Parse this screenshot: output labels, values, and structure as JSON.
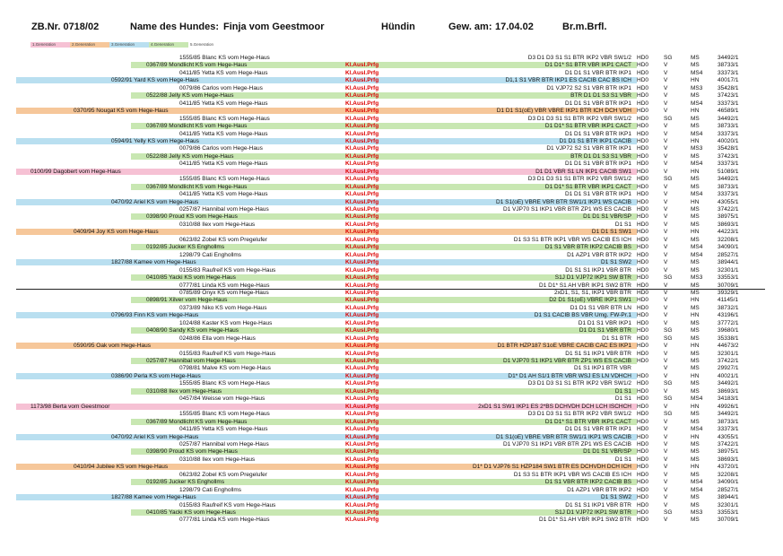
{
  "header": {
    "zb_nr": "ZB.Nr. 0718/02",
    "name_label": "Name des Hundes:",
    "dog_name": "Finja vom Geestmoor",
    "sex": "Hündin",
    "whelped_label": "Gew. am:",
    "whelped_date": "17.04.02",
    "color": "Br.m.Brfl."
  },
  "legend": [
    {
      "label": "1.Generation",
      "color": "#f6c1d4"
    },
    {
      "label": "2.Generation",
      "color": "#f6c79a"
    },
    {
      "label": "3.Generation",
      "color": "#b9dff0"
    },
    {
      "label": "4.Generation",
      "color": "#c8e7b2"
    },
    {
      "label": "5.Generation",
      "color": "#ffffff"
    }
  ],
  "gen_colors": [
    "#f6c1d4",
    "#f6c79a",
    "#b9dff0",
    "#c8e7b2",
    "#ffffff"
  ],
  "rows": [
    {
      "g": 5,
      "name": "1555/85 Blanc KS vom Hege-Haus",
      "kl": "",
      "tit": "D3 D1 D3 S1 S1 BTR IKP2 VBR SW1/2",
      "hd": "HD0",
      "sg": "SG",
      "ms": "MS",
      "num": "34492/1"
    },
    {
      "g": 4,
      "name": "0367/89 Mondlicht KS vom Hege-Haus",
      "kl": "Kl.Ausl.Prfg",
      "tit": "D1 D1* S1 BTR VBR IKP1 CACT",
      "hd": "HD0",
      "sg": "V",
      "ms": "MS",
      "num": "38733/1"
    },
    {
      "g": 5,
      "name": "0411/85 Yetta KS vom Hege-Haus",
      "kl": "Kl.Ausl.Prfg",
      "tit": "D1 D1 S1 VBR BTR IKP1",
      "hd": "HD0",
      "sg": "V",
      "ms": "MS4",
      "num": "33373/1"
    },
    {
      "g": 3,
      "name": "0592/91 Yard KS vom Hege-Haus",
      "kl": "Kl.Ausl.Prfg",
      "tit": "D1,1 S1 VBR BTR IKP1 ES CACIB CAC BS ICH",
      "hd": "HD0",
      "sg": "V",
      "ms": "HN",
      "num": "40017/1"
    },
    {
      "g": 5,
      "name": "0079/86 Carlos vom Hege-Haus",
      "kl": "Kl.Ausl.Prfg",
      "tit": "D1 VJP72 S2 S1 VBR BTR IKP1",
      "hd": "HD0",
      "sg": "V",
      "ms": "MS3",
      "num": "35428/1"
    },
    {
      "g": 4,
      "name": "0522/88 Jelly KS vom Hege-Haus",
      "kl": "Kl.Ausl.Prfg",
      "tit": "BTR D1 D1 S3 S1 VBR",
      "hd": "HD0",
      "sg": "V",
      "ms": "MS",
      "num": "37423/1"
    },
    {
      "g": 5,
      "name": "0411/85 Yetta KS vom Hege-Haus",
      "kl": "Kl.Ausl.Prfg",
      "tit": "D1 D1 S1 VBR BTR IKP1",
      "hd": "HD0",
      "sg": "V",
      "ms": "MS4",
      "num": "33373/1"
    },
    {
      "g": 2,
      "name": "0370/95 Nougat KS vom Hege-Haus",
      "kl": "Kl.Ausl.Prfg",
      "tit": "D1 D1 S1(oE) VBR VBRE IKP1 BTR ICH DCH VDH",
      "hd": "HD0",
      "sg": "V",
      "ms": "HN",
      "num": "46589/1"
    },
    {
      "g": 5,
      "name": "1555/85 Blanc KS vom Hege-Haus",
      "kl": "Kl.Ausl.Prfg",
      "tit": "D3 D1 D3 S1 S1 BTR IKP2 VBR SW1/2",
      "hd": "HD0",
      "sg": "SG",
      "ms": "MS",
      "num": "34492/1"
    },
    {
      "g": 4,
      "name": "0367/89 Mondlicht KS vom Hege-Haus",
      "kl": "Kl.Ausl.Prfg",
      "tit": "D1 D1* S1 BTR VBR IKP1 CACT",
      "hd": "HD0",
      "sg": "V",
      "ms": "MS",
      "num": "38733/1"
    },
    {
      "g": 5,
      "name": "0411/85 Yetta KS vom Hege-Haus",
      "kl": "Kl.Ausl.Prfg",
      "tit": "D1 D1 S1 VBR BTR IKP1",
      "hd": "HD0",
      "sg": "V",
      "ms": "MS4",
      "num": "33373/1"
    },
    {
      "g": 3,
      "name": "0594/91 Yelly KS vom Hege-Haus",
      "kl": "Kl.Ausl.Prfg",
      "tit": "D1 D1 S1 BTR IKP1 CACIB",
      "hd": "HD0",
      "sg": "V",
      "ms": "HN",
      "num": "40020/1"
    },
    {
      "g": 5,
      "name": "0079/86 Carlos vom Hege-Haus",
      "kl": "Kl.Ausl.Prfg",
      "tit": "D1 VJP72 S2 S1 VBR BTR IKP1",
      "hd": "HD0",
      "sg": "V",
      "ms": "MS3",
      "num": "35428/1"
    },
    {
      "g": 4,
      "name": "0522/88 Jelly KS vom Hege-Haus",
      "kl": "Kl.Ausl.Prfg",
      "tit": "BTR D1 D1 S3 S1 VBR",
      "hd": "HD0",
      "sg": "V",
      "ms": "MS",
      "num": "37423/1"
    },
    {
      "g": 5,
      "name": "0411/85 Yetta KS vom Hege-Haus",
      "kl": "Kl.Ausl.Prfg",
      "tit": "D1 D1 S1 VBR BTR IKP1",
      "hd": "HD0",
      "sg": "V",
      "ms": "MS4",
      "num": "33373/1"
    },
    {
      "g": 1,
      "name": "0100/99 Dagobert vom Hege-Haus",
      "kl": "Kl.Ausl.Prfg",
      "tit": "D1 D1 VBR S1 LN IKP1 CACIB SW1",
      "hd": "HD0",
      "sg": "V",
      "ms": "HN",
      "num": "51089/1"
    },
    {
      "g": 5,
      "name": "1555/85 Blanc KS vom Hege-Haus",
      "kl": "Kl.Ausl.Prfg",
      "tit": "D3 D1 D3 S1 S1 BTR IKP2 VBR SW1/2",
      "hd": "HD0",
      "sg": "SG",
      "ms": "MS",
      "num": "34492/1"
    },
    {
      "g": 4,
      "name": "0367/89 Mondlicht KS vom Hege-Haus",
      "kl": "Kl.Ausl.Prfg",
      "tit": "D1 D1* S1 BTR VBR IKP1 CACT",
      "hd": "HD0",
      "sg": "V",
      "ms": "MS",
      "num": "38733/1"
    },
    {
      "g": 5,
      "name": "0411/85 Yetta KS vom Hege-Haus",
      "kl": "Kl.Ausl.Prfg",
      "tit": "D1 D1 S1 VBR BTR IKP1",
      "hd": "HD0",
      "sg": "V",
      "ms": "MS4",
      "num": "33373/1"
    },
    {
      "g": 3,
      "name": "0470/92 Ariel KS vom Hege-Haus",
      "kl": "Kl.Ausl.Prfg",
      "tit": "D1 S1(oE) VBRE VBR BTR SW1/1 IKP1 WS CACIB",
      "hd": "HD0",
      "sg": "V",
      "ms": "HN",
      "num": "43055/1"
    },
    {
      "g": 5,
      "name": "0257/87 Hannibal vom Hege-Haus",
      "kl": "Kl.Ausl.Prfg",
      "tit": "D1 VJP70 S1 IKP1 VBR BTR ZP1 WS ES CACIB",
      "hd": "HD0",
      "sg": "V",
      "ms": "MS",
      "num": "37422/1"
    },
    {
      "g": 4,
      "name": "0398/90 Proud KS vom Hege-Haus",
      "kl": "Kl.Ausl.Prfg",
      "tit": "D1 D1 S1 VBR/SP",
      "hd": "HD0",
      "sg": "V",
      "ms": "MS",
      "num": "38975/1"
    },
    {
      "g": 5,
      "name": "0310/88 Ilex vom Hege-Haus",
      "kl": "Kl.Ausl.Prfg",
      "tit": "D1 S1",
      "hd": "HD0",
      "sg": "V",
      "ms": "MS",
      "num": "38693/1"
    },
    {
      "g": 2,
      "name": "0409/94 Joy KS vom Hege-Haus",
      "kl": "Kl.Ausl.Prfg",
      "tit": "D1 D1 S1 SW1",
      "hd": "HD0",
      "sg": "V",
      "ms": "HN",
      "num": "44223/1"
    },
    {
      "g": 5,
      "name": "0623/82 Zobel KS vom Pregelufer",
      "kl": "Kl.Ausl.Prfg",
      "tit": "D1 S3 S1 BTR IKP1 VBR WS CACIB ES ICH",
      "hd": "HD0",
      "sg": "V",
      "ms": "MS",
      "num": "32208/1"
    },
    {
      "g": 4,
      "name": "0192/85 Jucker KS  Enghollms",
      "kl": "Kl.Ausl.Prfg",
      "tit": "D1 S1 VBR BTR IKP2 CACIB BS",
      "hd": "HD0",
      "sg": "V",
      "ms": "MS4",
      "num": "34090/1"
    },
    {
      "g": 5,
      "name": "1298/79 Cati  Enghollms",
      "kl": "Kl.Ausl.Prfg",
      "tit": "D1 AZP1 VBR BTR IKP2",
      "hd": "HD0",
      "sg": "V",
      "ms": "MS4",
      "num": "28527/1"
    },
    {
      "g": 3,
      "name": "1827/88 Kamee vom Hege-Haus",
      "kl": "Kl.Ausl.Prfg",
      "tit": "D1 S1 SW2",
      "hd": "HD0",
      "sg": "V",
      "ms": "MS",
      "num": "38944/1"
    },
    {
      "g": 5,
      "name": "0155/83 Raufreif KS vom Hege-Haus",
      "kl": "Kl.Ausl.Prfg",
      "tit": "D1 S1 S1 IKP1 VBR BTR",
      "hd": "HD0",
      "sg": "V",
      "ms": "MS",
      "num": "32301/1"
    },
    {
      "g": 4,
      "name": "0410/85 Yacki KS vom Hege-Haus",
      "kl": "Kl.Ausl.Prfg",
      "tit": "S1J D1 VJP72 IKP1 SW BTR",
      "hd": "HD0",
      "sg": "SG",
      "ms": "MS3",
      "num": "33553/1"
    },
    {
      "g": 5,
      "name": "0777/81 Linda KS vom Hege-Haus",
      "kl": "Kl.Ausl.Prfg",
      "tit": "D1 D1* S1 AH VBR IKP1 SW2 BTR",
      "hd": "HD0",
      "sg": "V",
      "ms": "MS",
      "num": "30709/1"
    },
    {
      "g": 5,
      "name": "0785/89 Onyx KS vom Hege-Haus",
      "kl": "Kl.Ausl.Prfg",
      "tit": "2xD1, S1, S1, IKP1 VBR BTR",
      "hd": "HD0",
      "sg": "V",
      "ms": "MS",
      "num": "39329/1"
    },
    {
      "g": 4,
      "name": "0898/91 Xilver vom Hege-Haus",
      "kl": "Kl.Ausl.Prfg",
      "tit": "D2 D1 S1(oE) VBRE IKP1 SW1",
      "hd": "HD0",
      "sg": "V",
      "ms": "HN",
      "num": "41145/1"
    },
    {
      "g": 5,
      "name": "0373/89 Niko KS vom Hege-Haus",
      "kl": "Kl.Ausl.Prfg",
      "tit": "D1 D1 S1 VBR BTR LN",
      "hd": "HD0",
      "sg": "V",
      "ms": "MS",
      "num": "38732/1"
    },
    {
      "g": 3,
      "name": "0796/93 Finn KS vom Hege-Haus",
      "kl": "Kl.Ausl.Prfg",
      "tit": "D1 S1 CACIB BS VBR Umg. FW-Pr.1",
      "hd": "HD0",
      "sg": "V",
      "ms": "HN",
      "num": "43196/1"
    },
    {
      "g": 5,
      "name": "1024/88 Kaster KS vom Hege-Haus",
      "kl": "Kl.Ausl.Prfg",
      "tit": "D1 D1 S1 VBR IKP1",
      "hd": "HD0",
      "sg": "V",
      "ms": "MS",
      "num": "37772/1"
    },
    {
      "g": 4,
      "name": "0408/90 Sandy KS vom Hege-Haus",
      "kl": "Kl.Ausl.Prfg",
      "tit": "D1 D1 S1 VBR BTR",
      "hd": "HD0",
      "sg": "SG",
      "ms": "MS",
      "num": "39680/1"
    },
    {
      "g": 5,
      "name": "0248/86 Ella vom Hege-Haus",
      "kl": "Kl.Ausl.Prfg",
      "tit": "D1 S1 BTR",
      "hd": "HD0",
      "sg": "SG",
      "ms": "MS",
      "num": "35338/1"
    },
    {
      "g": 2,
      "name": "0590/95 Oak vom Hege-Haus",
      "kl": "Kl.Ausl.Prfg",
      "tit": "D1 BTR HZP187 S1oE VBRE CACIB CAC ES IKP1",
      "hd": "HD0",
      "sg": "V",
      "ms": "HN",
      "num": "44673/2"
    },
    {
      "g": 5,
      "name": "0155/83 Raufreif KS vom Hege-Haus",
      "kl": "Kl.Ausl.Prfg",
      "tit": "D1 S1 S1 IKP1 VBR BTR",
      "hd": "HD0",
      "sg": "V",
      "ms": "MS",
      "num": "32301/1"
    },
    {
      "g": 4,
      "name": "0257/87 Hannibal vom Hege-Haus",
      "kl": "Kl.Ausl.Prfg",
      "tit": "D1 VJP70 S1 IKP1 VBR BTR ZP1 WS ES CACIB",
      "hd": "HD0",
      "sg": "V",
      "ms": "MS",
      "num": "37422/1"
    },
    {
      "g": 5,
      "name": "0798/81 Malve KS vom Hege-Haus",
      "kl": "Kl.Ausl.Prfg",
      "tit": "D1 S1 IKP1 BTR VBR",
      "hd": "",
      "sg": "V",
      "ms": "MS",
      "num": "29927/1"
    },
    {
      "g": 3,
      "name": "0386/90 Perla KS vom Hege-Haus",
      "kl": "Kl.Ausl.Prfg",
      "tit": "D1* D1 AH S1/1 BTR VBR WSJ ES LN VDHCH",
      "hd": "HD0",
      "sg": "V",
      "ms": "HN",
      "num": "40021/1"
    },
    {
      "g": 5,
      "name": "1555/85 Blanc KS vom Hege-Haus",
      "kl": "Kl.Ausl.Prfg",
      "tit": "D3 D1 D3 S1 S1 BTR IKP2 VBR SW1/2",
      "hd": "HD0",
      "sg": "SG",
      "ms": "MS",
      "num": "34492/1"
    },
    {
      "g": 4,
      "name": "0310/88 Ilex vom Hege-Haus",
      "kl": "Kl.Ausl.Prfg",
      "tit": "D1 S1",
      "hd": "HD0",
      "sg": "V",
      "ms": "MS",
      "num": "38693/1"
    },
    {
      "g": 5,
      "name": "0457/84 Weisse vom Hege-Haus",
      "kl": "Kl.Ausl.Prfg",
      "tit": "D1 S1",
      "hd": "HD0",
      "sg": "SG",
      "ms": "MS4",
      "num": "34183/1"
    },
    {
      "g": 1,
      "name": "1173/98 Berta vom Geestmoor",
      "kl": "Kl.Ausl.Prfg",
      "tit": "2xD1 S1 SW1 IKP1 ES 2*BS DCHVDH DCH LCH ISCHCH",
      "hd": "HD0",
      "sg": "V",
      "ms": "HN",
      "num": "49926/1"
    },
    {
      "g": 5,
      "name": "1555/85 Blanc KS vom Hege-Haus",
      "kl": "Kl.Ausl.Prfg",
      "tit": "D3 D1 D3 S1 S1 BTR IKP2 VBR SW1/2",
      "hd": "HD0",
      "sg": "SG",
      "ms": "MS",
      "num": "34492/1"
    },
    {
      "g": 4,
      "name": "0367/89 Mondlicht KS vom Hege-Haus",
      "kl": "Kl.Ausl.Prfg",
      "tit": "D1 D1* S1 BTR VBR IKP1 CACT",
      "hd": "HD0",
      "sg": "V",
      "ms": "MS",
      "num": "38733/1"
    },
    {
      "g": 5,
      "name": "0411/85 Yetta KS vom Hege-Haus",
      "kl": "Kl.Ausl.Prfg",
      "tit": "D1 D1 S1 VBR BTR IKP1",
      "hd": "HD0",
      "sg": "V",
      "ms": "MS4",
      "num": "33373/1"
    },
    {
      "g": 3,
      "name": "0470/92 Ariel KS vom Hege-Haus",
      "kl": "Kl.Ausl.Prfg",
      "tit": "D1 S1(oE) VBRE VBR BTR SW1/1 IKP1 WS CACIB",
      "hd": "HD0",
      "sg": "V",
      "ms": "HN",
      "num": "43055/1"
    },
    {
      "g": 5,
      "name": "0257/87 Hannibal vom Hege-Haus",
      "kl": "Kl.Ausl.Prfg",
      "tit": "D1 VJP70 S1 IKP1 VBR BTR ZP1 WS ES CACIB",
      "hd": "HD0",
      "sg": "V",
      "ms": "MS",
      "num": "37422/1"
    },
    {
      "g": 4,
      "name": "0398/90 Proud KS vom Hege-Haus",
      "kl": "Kl.Ausl.Prfg",
      "tit": "D1 D1 S1 VBR/SP",
      "hd": "HD0",
      "sg": "V",
      "ms": "MS",
      "num": "38975/1"
    },
    {
      "g": 5,
      "name": "0310/88 Ilex vom Hege-Haus",
      "kl": "Kl.Ausl.Prfg",
      "tit": "D1 S1",
      "hd": "HD0",
      "sg": "V",
      "ms": "MS",
      "num": "38693/1"
    },
    {
      "g": 2,
      "name": "0410/94 Jubilee KS vom Hege-Haus",
      "kl": "Kl.Ausl.Prfg",
      "tit": "D1* D1 VJP76 S1 HZP184 SW1 BTR ES DCHVDH DCH ICH",
      "hd": "HD0",
      "sg": "V",
      "ms": "HN",
      "num": "43720/1"
    },
    {
      "g": 5,
      "name": "0623/82 Zobel KS vom Pregelufer",
      "kl": "Kl.Ausl.Prfg",
      "tit": "D1 S3 S1 BTR IKP1 VBR WS CACIB ES ICH",
      "hd": "HD0",
      "sg": "V",
      "ms": "MS",
      "num": "32208/1"
    },
    {
      "g": 4,
      "name": "0192/85 Jucker KS  Enghollms",
      "kl": "Kl.Ausl.Prfg",
      "tit": "D1 S1 VBR BTR IKP2 CACIB BS",
      "hd": "HD0",
      "sg": "V",
      "ms": "MS4",
      "num": "34090/1"
    },
    {
      "g": 5,
      "name": "1298/79 Cati  Enghollms",
      "kl": "Kl.Ausl.Prfg",
      "tit": "D1 AZP1 VBR BTR IKP2",
      "hd": "HD0",
      "sg": "V",
      "ms": "MS4",
      "num": "28527/1"
    },
    {
      "g": 3,
      "name": "1827/88 Kamee vom Hege-Haus",
      "kl": "Kl.Ausl.Prfg",
      "tit": "D1 S1 SW2",
      "hd": "HD0",
      "sg": "V",
      "ms": "MS",
      "num": "38944/1"
    },
    {
      "g": 5,
      "name": "0155/83 Raufreif KS vom Hege-Haus",
      "kl": "Kl.Ausl.Prfg",
      "tit": "D1 S1 S1 IKP1 VBR BTR",
      "hd": "HD0",
      "sg": "V",
      "ms": "MS",
      "num": "32301/1"
    },
    {
      "g": 4,
      "name": "0410/85 Yacki KS vom Hege-Haus",
      "kl": "Kl.Ausl.Prfg",
      "tit": "S1J D1 VJP72 IKP1 SW BTR",
      "hd": "HD0",
      "sg": "SG",
      "ms": "MS3",
      "num": "33553/1"
    },
    {
      "g": 5,
      "name": "0777/81 Linda KS vom Hege-Haus",
      "kl": "Kl.Ausl.Prfg",
      "tit": "D1 D1* S1 AH VBR IKP1 SW2 BTR",
      "hd": "HD0",
      "sg": "V",
      "ms": "MS",
      "num": "30709/1"
    }
  ]
}
